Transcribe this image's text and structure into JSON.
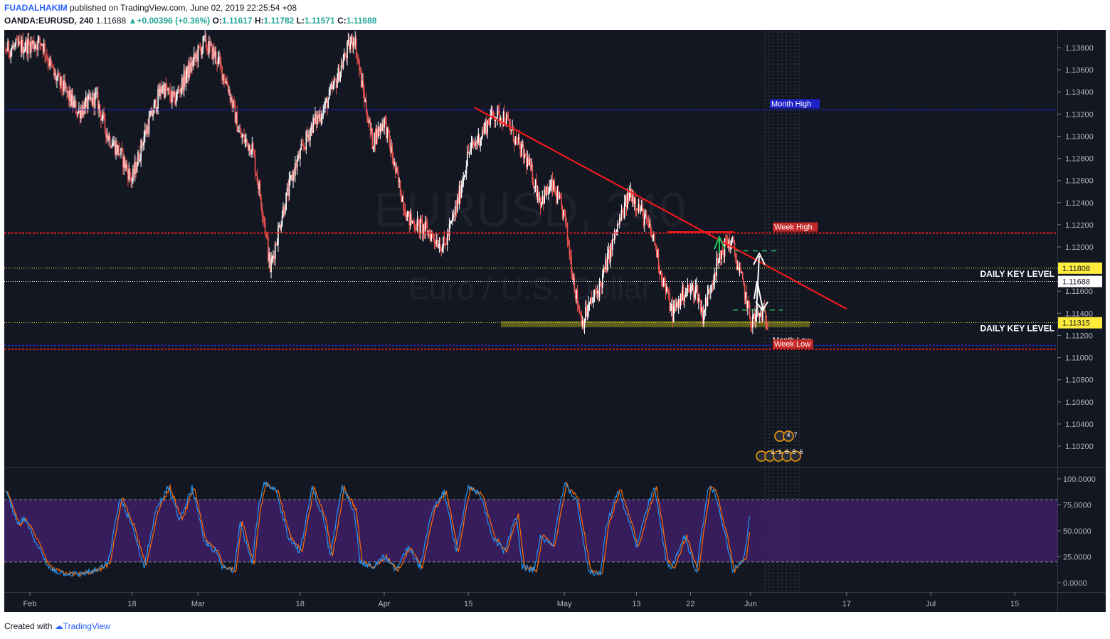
{
  "header": {
    "author": "FUADALHAKIM",
    "published_text": "published on TradingView.com, June 02, 2019 22:25:54 +08",
    "symbol": "OANDA:EURUSD, 240",
    "last": "1.11688",
    "change": "+0.00396 (+0.36%)",
    "o_label": "O:",
    "o_value": "1.11617",
    "h_label": "H:",
    "h_value": "1.11782",
    "l_label": "L:",
    "l_value": "1.11571",
    "c_label": "C:",
    "c_value": "1.11688"
  },
  "watermark": {
    "line1": "EURUSD, 240",
    "line2": "Euro / U.S. Dollar"
  },
  "footer": {
    "created_with": "Created with",
    "brand": "TradingView"
  },
  "colors": {
    "bg": "#131722",
    "bull": "#ffffff",
    "bear": "#ef5350",
    "month_line": "#1e22c8",
    "week_line": "#e11d1d",
    "key_line": "#ffeb3b",
    "trend_line": "#ff1a1a",
    "stoch_band": "#3f1f66",
    "stoch_k": "#2196f3",
    "stoch_d": "#ff6d00"
  },
  "chart_data": {
    "type": "candlestick",
    "title": "OANDA:EURUSD, 240",
    "price_range": [
      1.1,
      1.139
    ],
    "price_ticks": [
      "1.13800",
      "1.13600",
      "1.13400",
      "1.13200",
      "1.13000",
      "1.12800",
      "1.12600",
      "1.12400",
      "1.12200",
      "1.12000",
      "1.11800",
      "1.11600",
      "1.11400",
      "1.11200",
      "1.11000",
      "1.10800",
      "1.10600",
      "1.10400",
      "1.10200"
    ],
    "x_ticks": [
      {
        "label": "Feb",
        "day": 1
      },
      {
        "label": "18",
        "day": 18
      },
      {
        "label": "Mar",
        "day": 29
      },
      {
        "label": "18",
        "day": 46
      },
      {
        "label": "Apr",
        "day": 60
      },
      {
        "label": "15",
        "day": 74
      },
      {
        "label": "May",
        "day": 90
      },
      {
        "label": "13",
        "day": 102
      },
      {
        "label": "22",
        "day": 111
      },
      {
        "label": "Jun",
        "day": 121
      },
      {
        "label": "17",
        "day": 137
      },
      {
        "label": "Jul",
        "day": 151
      },
      {
        "label": "15",
        "day": 165
      }
    ],
    "close_path": [
      [
        -6,
        1.1375
      ],
      [
        3,
        1.1385
      ],
      [
        5,
        1.1355
      ],
      [
        7,
        1.134
      ],
      [
        9,
        1.1322
      ],
      [
        12,
        1.1335
      ],
      [
        14,
        1.13
      ],
      [
        16,
        1.1285
      ],
      [
        18,
        1.126
      ],
      [
        20,
        1.13
      ],
      [
        23,
        1.1345
      ],
      [
        25,
        1.1332
      ],
      [
        27,
        1.1355
      ],
      [
        30,
        1.1385
      ],
      [
        32,
        1.1372
      ],
      [
        34,
        1.1345
      ],
      [
        36,
        1.13
      ],
      [
        38,
        1.129
      ],
      [
        40,
        1.1225
      ],
      [
        41,
        1.118
      ],
      [
        43,
        1.123
      ],
      [
        45,
        1.127
      ],
      [
        48,
        1.131
      ],
      [
        50,
        1.1325
      ],
      [
        52,
        1.135
      ],
      [
        54,
        1.138
      ],
      [
        55,
        1.139
      ],
      [
        56,
        1.1355
      ],
      [
        58,
        1.1295
      ],
      [
        60,
        1.1315
      ],
      [
        62,
        1.1265
      ],
      [
        64,
        1.1225
      ],
      [
        67,
        1.1215
      ],
      [
        70,
        1.12
      ],
      [
        72,
        1.1235
      ],
      [
        74,
        1.1285
      ],
      [
        76,
        1.13
      ],
      [
        78,
        1.132
      ],
      [
        80,
        1.1318
      ],
      [
        82,
        1.1295
      ],
      [
        84,
        1.1275
      ],
      [
        86,
        1.1242
      ],
      [
        88,
        1.1255
      ],
      [
        90,
        1.1228
      ],
      [
        91,
        1.119
      ],
      [
        92,
        1.1155
      ],
      [
        93,
        1.1132
      ],
      [
        94,
        1.1145
      ],
      [
        96,
        1.1165
      ],
      [
        97,
        1.1185
      ],
      [
        99,
        1.122
      ],
      [
        101,
        1.125
      ],
      [
        103,
        1.123
      ],
      [
        105,
        1.1205
      ],
      [
        106,
        1.1178
      ],
      [
        108,
        1.114
      ],
      [
        110,
        1.116
      ],
      [
        112,
        1.1162
      ],
      [
        113,
        1.1138
      ],
      [
        115,
        1.1178
      ],
      [
        117,
        1.1205
      ],
      [
        118,
        1.1202
      ],
      [
        119,
        1.118
      ],
      [
        120,
        1.116
      ],
      [
        121,
        1.1133
      ],
      [
        123,
        1.114
      ],
      [
        124,
        1.113
      ]
    ],
    "candle_spacing_days": 0.1667,
    "levels": [
      {
        "name": "Month High",
        "price": 1.13238
      },
      {
        "name": "Week High",
        "price": 1.12125
      },
      {
        "name": "DAILY KEY LEVEL",
        "price": 1.11808
      },
      {
        "name": "Month Low",
        "price": 1.1111
      },
      {
        "name": "Week Low",
        "price": 1.11075
      },
      {
        "name": "DAILY KEY LEVEL",
        "price": 1.11315
      }
    ],
    "current_price": {
      "label": "1.11688",
      "price": 1.11688
    },
    "key_level_tags": [
      "1.11808",
      "1.11315"
    ],
    "key_level_text": [
      "DAILY KEY LEVEL",
      "DAILY KEY LEVEL"
    ],
    "level_tags": [
      "Month High",
      "Week High",
      "Month Low",
      "Week Low"
    ],
    "trendline": [
      [
        75,
        1.1326
      ],
      [
        137,
        1.1144
      ]
    ],
    "support_zone": [
      1.11275,
      1.1133
    ],
    "stochastic": {
      "ticks": [
        "100.0000",
        "75.0000",
        "50.0000",
        "25.0000",
        "0.0000"
      ],
      "range": [
        0,
        100
      ],
      "band": [
        20,
        80
      ],
      "k_path": [
        [
          -6,
          92
        ],
        [
          -3,
          88
        ],
        [
          -1,
          55
        ],
        [
          0,
          62
        ],
        [
          2,
          40
        ],
        [
          4,
          15
        ],
        [
          6,
          10
        ],
        [
          9,
          8
        ],
        [
          12,
          12
        ],
        [
          14,
          18
        ],
        [
          16,
          82
        ],
        [
          18,
          55
        ],
        [
          20,
          15
        ],
        [
          22,
          70
        ],
        [
          24,
          92
        ],
        [
          26,
          60
        ],
        [
          28,
          92
        ],
        [
          30,
          40
        ],
        [
          32,
          30
        ],
        [
          33,
          15
        ],
        [
          35,
          12
        ],
        [
          36,
          60
        ],
        [
          38,
          18
        ],
        [
          39,
          70
        ],
        [
          40,
          95
        ],
        [
          42,
          88
        ],
        [
          44,
          45
        ],
        [
          46,
          30
        ],
        [
          48,
          92
        ],
        [
          50,
          60
        ],
        [
          51,
          25
        ],
        [
          53,
          92
        ],
        [
          55,
          70
        ],
        [
          56,
          20
        ],
        [
          58,
          15
        ],
        [
          60,
          25
        ],
        [
          62,
          12
        ],
        [
          64,
          35
        ],
        [
          66,
          15
        ],
        [
          68,
          70
        ],
        [
          70,
          88
        ],
        [
          72,
          30
        ],
        [
          74,
          92
        ],
        [
          76,
          85
        ],
        [
          78,
          45
        ],
        [
          80,
          30
        ],
        [
          82,
          65
        ],
        [
          83,
          15
        ],
        [
          85,
          12
        ],
        [
          86,
          45
        ],
        [
          88,
          35
        ],
        [
          90,
          95
        ],
        [
          92,
          80
        ],
        [
          94,
          12
        ],
        [
          96,
          8
        ],
        [
          97,
          55
        ],
        [
          99,
          90
        ],
        [
          101,
          55
        ],
        [
          102,
          35
        ],
        [
          104,
          75
        ],
        [
          105,
          92
        ],
        [
          107,
          20
        ],
        [
          108,
          15
        ],
        [
          110,
          45
        ],
        [
          112,
          10
        ],
        [
          113,
          55
        ],
        [
          114,
          92
        ],
        [
          115,
          88
        ],
        [
          117,
          40
        ],
        [
          118,
          12
        ],
        [
          120,
          25
        ],
        [
          121,
          70
        ]
      ]
    }
  }
}
